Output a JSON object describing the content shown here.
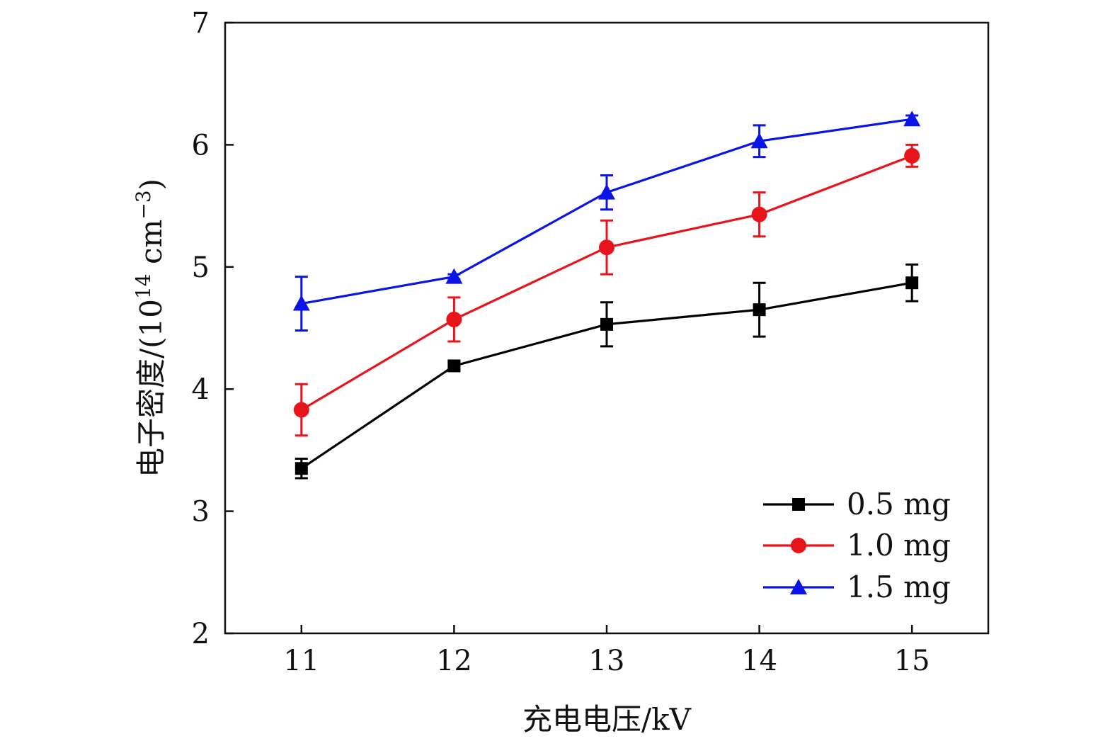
{
  "chart_data": {
    "type": "line",
    "title": "",
    "xlabel": "充电电压/kV",
    "ylabel": {
      "prefix": "电子密度/(10",
      "exp1": "14",
      "mid": " cm",
      "exp2": "−3",
      "suffix": ")"
    },
    "x": [
      11,
      12,
      13,
      14,
      15
    ],
    "x_tick_labels": [
      "11",
      "12",
      "13",
      "14",
      "15"
    ],
    "xlim": [
      10.5,
      15.5
    ],
    "ylim": [
      2,
      7
    ],
    "y_ticks": [
      2,
      3,
      4,
      5,
      6,
      7
    ],
    "y_tick_labels": [
      "2",
      "3",
      "4",
      "5",
      "6",
      "7"
    ],
    "grid": false,
    "legend_position": "bottom-right",
    "series": [
      {
        "name": "0.5 mg",
        "color": "#000000",
        "marker": "square",
        "values": [
          3.35,
          4.19,
          4.53,
          4.65,
          4.87
        ],
        "errors": [
          0.08,
          0.03,
          0.18,
          0.22,
          0.15
        ]
      },
      {
        "name": "1.0 mg",
        "color": "#e8141c",
        "marker": "circle",
        "values": [
          3.83,
          4.57,
          5.16,
          5.43,
          5.91
        ],
        "errors": [
          0.21,
          0.18,
          0.22,
          0.18,
          0.09
        ]
      },
      {
        "name": "1.5 mg",
        "color": "#0a14e6",
        "marker": "triangle",
        "values": [
          4.7,
          4.92,
          5.61,
          6.03,
          6.21
        ],
        "errors": [
          0.22,
          0.02,
          0.14,
          0.13,
          0.03
        ]
      }
    ]
  }
}
